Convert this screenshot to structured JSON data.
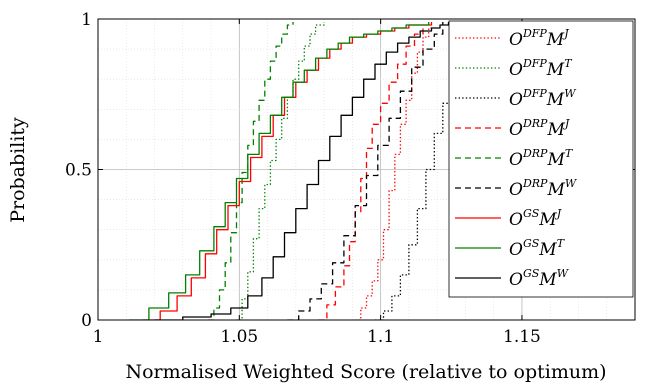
{
  "chart_data": {
    "type": "line",
    "title": "",
    "xlabel": "Normalised Weighted Score (relative to optimum)",
    "ylabel": "Probability",
    "xlim": [
      1.0,
      1.19
    ],
    "ylim": [
      0,
      1
    ],
    "xticks": [
      "1",
      "1.05",
      "1.1",
      "1.15"
    ],
    "xtick_values": [
      1.0,
      1.05,
      1.1,
      1.15
    ],
    "yticks": [
      "0",
      "0.5",
      "1"
    ],
    "ytick_values": [
      0,
      0.5,
      1
    ],
    "grid": true,
    "legend_position": "right",
    "series": [
      {
        "name": "DFP",
        "label": {
          "o": "O",
          "osup": "DFP",
          "m": "M",
          "msup": "J"
        },
        "color": "#ff0000",
        "dash": "dotted",
        "x": [
          1.091,
          1.093,
          1.095,
          1.097,
          1.099,
          1.101,
          1.103,
          1.105,
          1.107,
          1.109,
          1.111,
          1.113,
          1.115,
          1.117,
          1.118
        ],
        "y": [
          0.0,
          0.04,
          0.08,
          0.13,
          0.2,
          0.3,
          0.43,
          0.55,
          0.65,
          0.73,
          0.82,
          0.89,
          0.94,
          0.97,
          0.98
        ]
      },
      {
        "name": "DFP",
        "label": {
          "o": "O",
          "osup": "DFP",
          "m": "M",
          "msup": "T"
        },
        "color": "#008000",
        "dash": "dotted",
        "x": [
          1.049,
          1.051,
          1.053,
          1.055,
          1.057,
          1.059,
          1.061,
          1.063,
          1.065,
          1.067,
          1.069,
          1.071,
          1.073,
          1.075,
          1.077,
          1.08
        ],
        "y": [
          0.0,
          0.07,
          0.16,
          0.27,
          0.37,
          0.45,
          0.53,
          0.6,
          0.67,
          0.74,
          0.8,
          0.86,
          0.91,
          0.95,
          0.98,
          0.99
        ]
      },
      {
        "name": "DFP",
        "label": {
          "o": "O",
          "osup": "DFP",
          "m": "M",
          "msup": "W"
        },
        "color": "#000000",
        "dash": "dotted",
        "x": [
          1.098,
          1.101,
          1.104,
          1.107,
          1.11,
          1.113,
          1.116,
          1.119,
          1.122,
          1.125,
          1.128,
          1.131,
          1.134,
          1.137,
          1.14
        ],
        "y": [
          0.0,
          0.03,
          0.08,
          0.15,
          0.25,
          0.37,
          0.5,
          0.62,
          0.72,
          0.8,
          0.86,
          0.91,
          0.95,
          0.97,
          0.99
        ]
      },
      {
        "name": "DRP",
        "label": {
          "o": "O",
          "osup": "DRP",
          "m": "M",
          "msup": "J"
        },
        "color": "#ff0000",
        "dash": "dashed",
        "x": [
          1.078,
          1.081,
          1.084,
          1.087,
          1.089,
          1.091,
          1.093,
          1.095,
          1.097,
          1.1,
          1.103,
          1.106,
          1.109,
          1.112,
          1.115
        ],
        "y": [
          0.0,
          0.05,
          0.11,
          0.18,
          0.26,
          0.36,
          0.47,
          0.57,
          0.65,
          0.72,
          0.79,
          0.85,
          0.91,
          0.95,
          0.98
        ]
      },
      {
        "name": "DRP",
        "label": {
          "o": "O",
          "osup": "DRP",
          "m": "M",
          "msup": "T"
        },
        "color": "#008000",
        "dash": "dashed",
        "x": [
          1.039,
          1.041,
          1.043,
          1.045,
          1.047,
          1.049,
          1.051,
          1.053,
          1.055,
          1.057,
          1.059,
          1.061,
          1.063,
          1.065,
          1.067,
          1.069
        ],
        "y": [
          0.0,
          0.04,
          0.1,
          0.19,
          0.29,
          0.39,
          0.49,
          0.58,
          0.66,
          0.73,
          0.8,
          0.86,
          0.91,
          0.95,
          0.98,
          0.99
        ]
      },
      {
        "name": "DRP",
        "label": {
          "o": "O",
          "osup": "DRP",
          "m": "M",
          "msup": "W"
        },
        "color": "#000000",
        "dash": "dashed",
        "x": [
          1.067,
          1.071,
          1.075,
          1.079,
          1.083,
          1.087,
          1.091,
          1.095,
          1.099,
          1.103,
          1.107,
          1.111,
          1.115,
          1.119,
          1.122
        ],
        "y": [
          0.0,
          0.03,
          0.07,
          0.12,
          0.19,
          0.28,
          0.38,
          0.48,
          0.58,
          0.67,
          0.76,
          0.84,
          0.9,
          0.95,
          0.99
        ]
      },
      {
        "name": "GS",
        "label": {
          "o": "O",
          "osup": "GS",
          "m": "M",
          "msup": "J"
        },
        "color": "#ff0000",
        "dash": "solid",
        "x": [
          1.016,
          1.022,
          1.028,
          1.033,
          1.038,
          1.042,
          1.046,
          1.05,
          1.054,
          1.058,
          1.062,
          1.066,
          1.07,
          1.074,
          1.078,
          1.082,
          1.086,
          1.09,
          1.095,
          1.1,
          1.105,
          1.11,
          1.115,
          1.118
        ],
        "y": [
          0.0,
          0.03,
          0.08,
          0.14,
          0.22,
          0.3,
          0.38,
          0.46,
          0.54,
          0.61,
          0.68,
          0.74,
          0.79,
          0.83,
          0.87,
          0.9,
          0.92,
          0.94,
          0.95,
          0.96,
          0.97,
          0.98,
          0.98,
          0.99
        ]
      },
      {
        "name": "GS",
        "label": {
          "o": "O",
          "osup": "GS",
          "m": "M",
          "msup": "T"
        },
        "color": "#008000",
        "dash": "solid",
        "x": [
          1.011,
          1.018,
          1.025,
          1.031,
          1.036,
          1.041,
          1.045,
          1.049,
          1.053,
          1.057,
          1.061,
          1.065,
          1.069,
          1.073,
          1.077,
          1.081,
          1.085,
          1.089,
          1.094,
          1.099,
          1.104,
          1.109,
          1.114,
          1.117
        ],
        "y": [
          0.0,
          0.04,
          0.09,
          0.15,
          0.23,
          0.31,
          0.39,
          0.47,
          0.55,
          0.62,
          0.68,
          0.74,
          0.79,
          0.83,
          0.87,
          0.9,
          0.92,
          0.94,
          0.95,
          0.96,
          0.97,
          0.98,
          0.98,
          0.99
        ]
      },
      {
        "name": "GS",
        "label": {
          "o": "O",
          "osup": "GS",
          "m": "M",
          "msup": "W"
        },
        "color": "#000000",
        "dash": "solid",
        "x": [
          1.02,
          1.03,
          1.04,
          1.047,
          1.053,
          1.058,
          1.062,
          1.066,
          1.07,
          1.074,
          1.078,
          1.082,
          1.086,
          1.09,
          1.094,
          1.098,
          1.102,
          1.106,
          1.11,
          1.114,
          1.118,
          1.121,
          1.124
        ],
        "y": [
          0.0,
          0.01,
          0.02,
          0.04,
          0.08,
          0.14,
          0.21,
          0.29,
          0.37,
          0.45,
          0.53,
          0.61,
          0.68,
          0.74,
          0.8,
          0.85,
          0.89,
          0.92,
          0.94,
          0.96,
          0.97,
          0.98,
          0.99
        ]
      }
    ]
  }
}
